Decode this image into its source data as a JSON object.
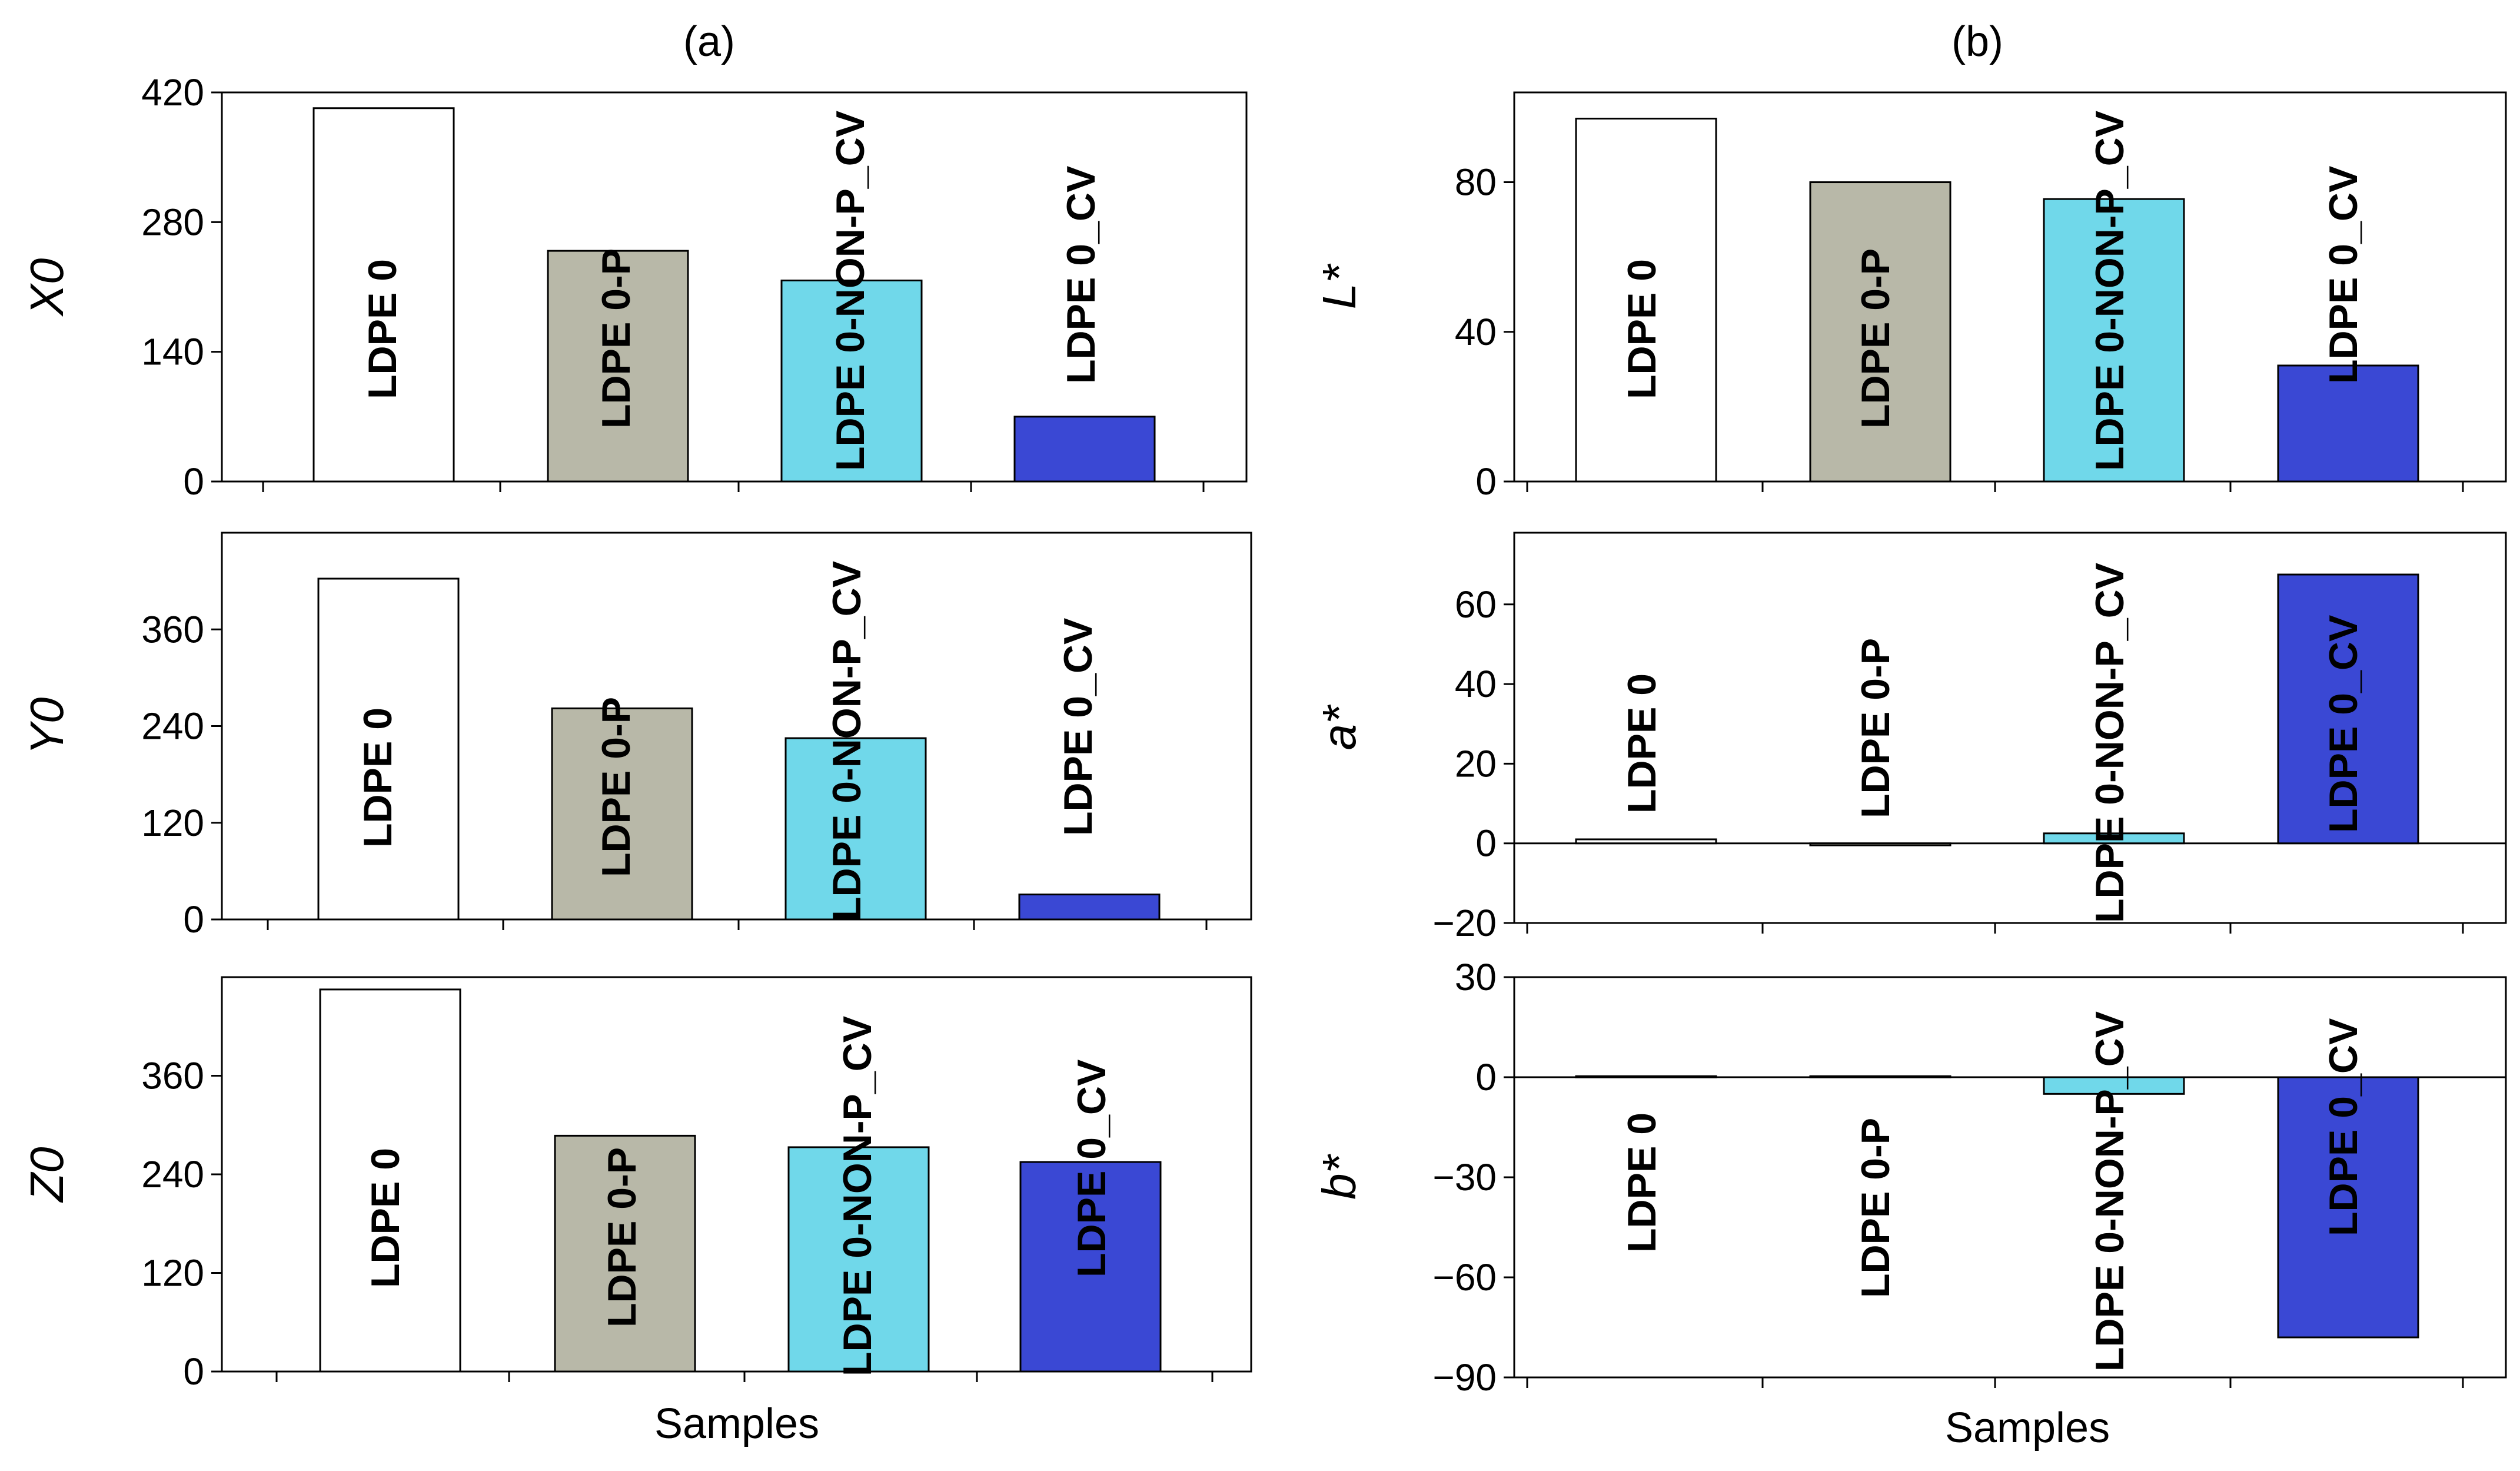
{
  "figure": {
    "panel_titles": [
      "(a)",
      "(b)"
    ],
    "x_labels": [
      "Samples",
      "Samples"
    ]
  },
  "chart_data": [
    {
      "type": "bar",
      "title": "",
      "xlabel": "",
      "ylabel": "X0",
      "categories": [
        "LDPE 0",
        "LDPE 0-P",
        "LDPE 0-NON-P_CV",
        "LDPE 0_CV"
      ],
      "colors": [
        "#ffffff",
        "#b8b8a8",
        "#70d8ea",
        "#3a48d4"
      ],
      "values": [
        403,
        249,
        217,
        70
      ],
      "ylim": [
        0,
        420
      ],
      "yticks": [
        0,
        140,
        280,
        420
      ],
      "ytick_labels": [
        "0",
        "140",
        "280",
        "420"
      ]
    },
    {
      "type": "bar",
      "title": "",
      "xlabel": "",
      "ylabel": "Y0",
      "categories": [
        "LDPE 0",
        "LDPE 0-P",
        "LDPE 0-NON-P_CV",
        "LDPE 0_CV"
      ],
      "colors": [
        "#ffffff",
        "#b8b8a8",
        "#70d8ea",
        "#3a48d4"
      ],
      "values": [
        423,
        262,
        225,
        31
      ],
      "ylim": [
        0,
        480
      ],
      "yticks": [
        0,
        120,
        240,
        360
      ],
      "ytick_labels": [
        "0",
        "120",
        "240",
        "360"
      ]
    },
    {
      "type": "bar",
      "title": "",
      "xlabel": "Samples",
      "ylabel": "Z0",
      "categories": [
        "LDPE 0",
        "LDPE 0-P",
        "LDPE 0-NON-P_CV",
        "LDPE 0_CV"
      ],
      "colors": [
        "#ffffff",
        "#b8b8a8",
        "#70d8ea",
        "#3a48d4"
      ],
      "values": [
        465,
        287,
        273,
        255
      ],
      "ylim": [
        0,
        480
      ],
      "yticks": [
        0,
        120,
        240,
        360
      ],
      "ytick_labels": [
        "0",
        "120",
        "240",
        "360"
      ]
    },
    {
      "type": "bar",
      "title": "",
      "xlabel": "",
      "ylabel": "L*",
      "categories": [
        "LDPE 0",
        "LDPE 0-P",
        "LDPE 0-NON-P_CV",
        "LDPE 0_CV"
      ],
      "colors": [
        "#ffffff",
        "#b8b8a8",
        "#70d8ea",
        "#3a48d4"
      ],
      "values": [
        97,
        80,
        75.5,
        31
      ],
      "ylim": [
        0,
        104
      ],
      "yticks": [
        0,
        40,
        80
      ],
      "ytick_labels": [
        "0",
        "40",
        "80"
      ]
    },
    {
      "type": "bar",
      "title": "",
      "xlabel": "",
      "ylabel": "a*",
      "categories": [
        "LDPE 0",
        "LDPE 0-P",
        "LDPE 0-NON-P_CV",
        "LDPE 0_CV"
      ],
      "colors": [
        "#ffffff",
        "#b8b8a8",
        "#70d8ea",
        "#3a48d4"
      ],
      "values": [
        1,
        -0.5,
        2.5,
        67.5
      ],
      "ylim": [
        -20,
        78
      ],
      "yticks": [
        -20,
        0,
        20,
        40,
        60
      ],
      "ytick_labels": [
        "−20",
        "0",
        "20",
        "40",
        "60"
      ]
    },
    {
      "type": "bar",
      "title": "",
      "xlabel": "Samples",
      "ylabel": "b*",
      "categories": [
        "LDPE 0",
        "LDPE 0-P",
        "LDPE 0-NON-P_CV",
        "LDPE 0_CV"
      ],
      "colors": [
        "#ffffff",
        "#b8b8a8",
        "#70d8ea",
        "#3a48d4"
      ],
      "values": [
        0.3,
        0.3,
        -5,
        -78
      ],
      "ylim": [
        -90,
        30
      ],
      "yticks": [
        -90,
        -60,
        -30,
        0,
        30
      ],
      "ytick_labels": [
        "−90",
        "−60",
        "−30",
        "0",
        "30"
      ]
    }
  ]
}
